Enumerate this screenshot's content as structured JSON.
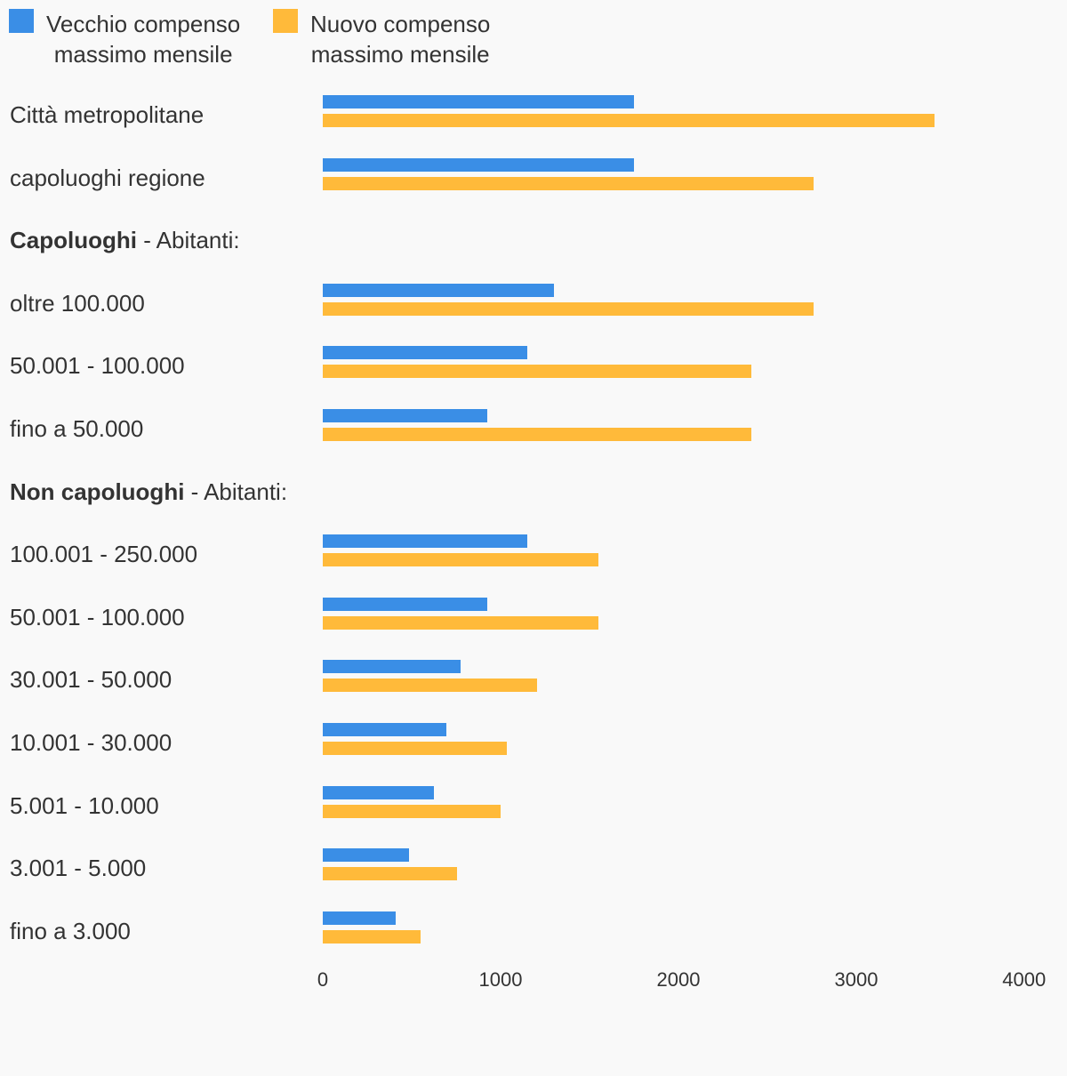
{
  "chart_data": {
    "type": "bar",
    "orientation": "horizontal",
    "title": "",
    "xlabel": "",
    "ylabel": "",
    "xlim": [
      0,
      4000
    ],
    "xticks": [
      "0",
      "1000",
      "2000",
      "3000",
      "4000"
    ],
    "grid": false,
    "legend_position": "top-left",
    "series": [
      {
        "name": "Vecchio compenso\nmassimo mensile",
        "color": "#3a8ee6"
      },
      {
        "name": "Nuovo compenso\nmassimo mensile",
        "color": "#ffba3a"
      }
    ],
    "rows": [
      {
        "label": "Città metropolitane",
        "old": 1750,
        "new": 3440
      },
      {
        "label": "capoluoghi regione",
        "old": 1750,
        "new": 2760
      },
      {
        "label_bold": "Capoluoghi",
        "label_rest": " - Abitanti:",
        "header": true
      },
      {
        "label": "oltre 100.000",
        "old": 1300,
        "new": 2760
      },
      {
        "label": "50.001 - 100.000",
        "old": 1150,
        "new": 2410
      },
      {
        "label": "fino a 50.000",
        "old": 925,
        "new": 2410
      },
      {
        "label_bold": "Non capoluoghi",
        "label_rest": " - Abitanti:",
        "header": true
      },
      {
        "label": "100.001 - 250.000",
        "old": 1150,
        "new": 1550
      },
      {
        "label": "50.001 - 100.000",
        "old": 925,
        "new": 1550
      },
      {
        "label": "30.001 - 50.000",
        "old": 775,
        "new": 1205
      },
      {
        "label": "10.001 - 30.000",
        "old": 695,
        "new": 1035
      },
      {
        "label": "5.001 - 10.000",
        "old": 625,
        "new": 1000
      },
      {
        "label": "3.001 - 5.000",
        "old": 485,
        "new": 755
      },
      {
        "label": "fino a 3.000",
        "old": 410,
        "new": 550
      }
    ]
  }
}
